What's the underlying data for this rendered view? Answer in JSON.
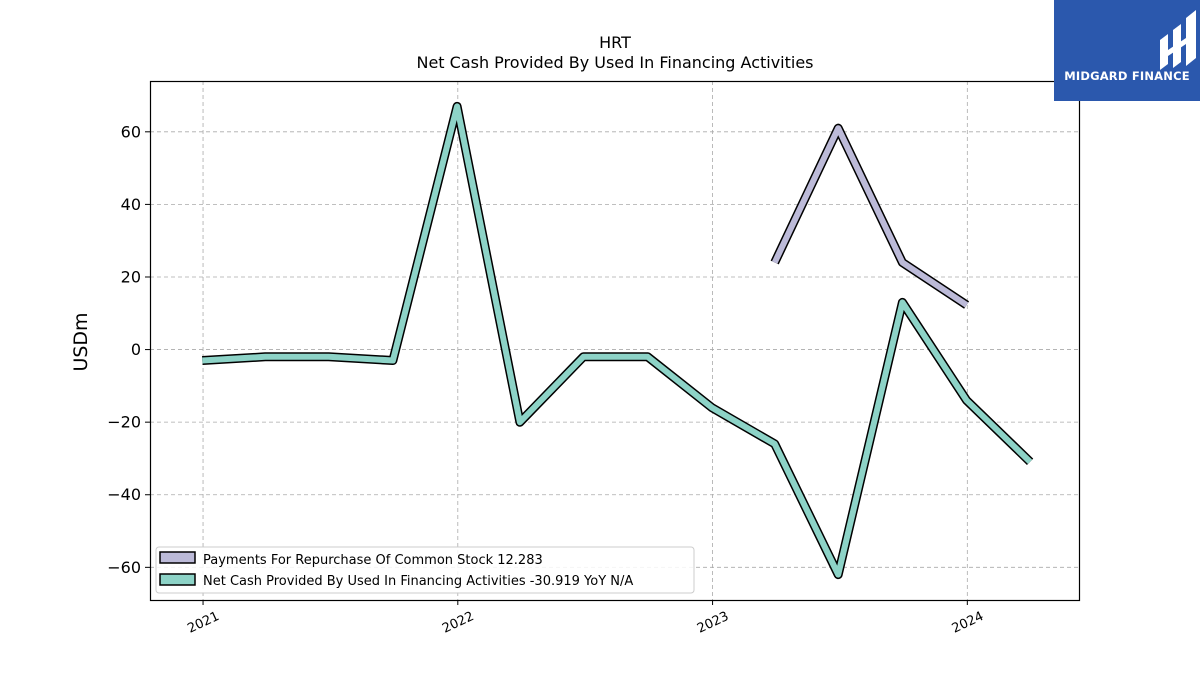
{
  "brand": {
    "name": "MIDGARD FINANCE",
    "bg_color": "#2b58ad"
  },
  "chart_data": {
    "type": "line",
    "title": "HRT",
    "subtitle": "Net Cash Provided By Used In Financing Activities",
    "ylabel": "USDm",
    "xlabel": "",
    "ylim": [
      -69,
      74
    ],
    "xlim": [
      "2020-10-17",
      "2024-06-09"
    ],
    "grid": true,
    "legend_position": "lower-left",
    "x_ticks": [
      "2021",
      "2022",
      "2023",
      "2024"
    ],
    "y_ticks": [
      -60,
      -40,
      -20,
      0,
      20,
      40,
      60
    ],
    "y_tick_labels": [
      "−60",
      "−40",
      "−20",
      "0",
      "20",
      "40",
      "60"
    ],
    "series": [
      {
        "name": "Payments For Repurchase Of Common Stock",
        "legend_label": "Payments For Repurchase Of Common Stock  12.283",
        "color": "#bcbad8",
        "x": [
          "2023-03-31",
          "2023-06-30",
          "2023-09-30",
          "2023-12-31"
        ],
        "values": [
          24,
          61,
          24,
          12.283
        ]
      },
      {
        "name": "Net Cash Provided By Used In Financing Activities",
        "legend_label": "Net Cash Provided By Used In Financing Activities  -30.919 YoY N/A",
        "color": "#8dd3c7",
        "x": [
          "2020-12-31",
          "2021-03-31",
          "2021-06-30",
          "2021-09-30",
          "2021-12-31",
          "2022-03-31",
          "2022-06-30",
          "2022-09-30",
          "2022-12-31",
          "2023-03-31",
          "2023-06-30",
          "2023-09-30",
          "2023-12-31",
          "2024-03-31"
        ],
        "values": [
          -3,
          -2,
          -2,
          -3,
          67,
          -20,
          -2,
          -2,
          -16,
          -26,
          -62,
          13,
          -14,
          -30.919
        ]
      }
    ]
  }
}
